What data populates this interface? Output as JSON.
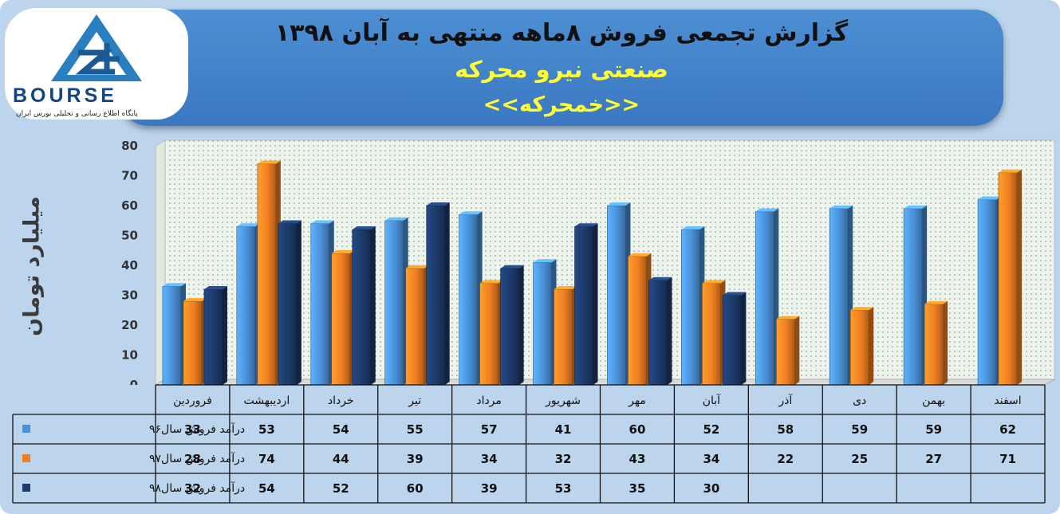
{
  "header": {
    "title": "گزارش تجمعی فروش  ۸ماهه منتهی به آبان ۱۳۹۸",
    "industry": "صنعتی نیرو محرکه",
    "symbol": "<<خمحرکه>>"
  },
  "logo": {
    "wordmark": "BOURSE",
    "tagline": "پایگاه اطلاع رسانی و تحلیلی بورس ایران"
  },
  "colors": {
    "series96": "#4a90d9",
    "series97": "#f07f22",
    "series98": "#1d3a6b",
    "plot_bg": "#eef3ee"
  },
  "chart_data": {
    "type": "bar",
    "ylabel": "میلیارد تومان",
    "xlabel": "",
    "ylim": [
      0,
      80
    ],
    "yticks": [
      0,
      10,
      20,
      30,
      40,
      50,
      60,
      70,
      80
    ],
    "grid": false,
    "legend": "table-left",
    "categories": [
      "فروردین",
      "اردیبهشت",
      "خرداد",
      "تیر",
      "مرداد",
      "شهریور",
      "مهر",
      "آبان",
      "آذر",
      "دی",
      "بهمن",
      "اسفند"
    ],
    "series": [
      {
        "name": "درآمد فروش سال۹۶",
        "values": [
          33,
          53,
          54,
          55,
          57,
          41,
          60,
          52,
          58,
          59,
          59,
          62
        ]
      },
      {
        "name": "درآمد فروش سال۹۷",
        "values": [
          28,
          74,
          44,
          39,
          34,
          32,
          43,
          34,
          22,
          25,
          27,
          71
        ]
      },
      {
        "name": "درآمد فروش سال۹۸",
        "values": [
          32,
          54,
          52,
          60,
          39,
          53,
          35,
          30,
          null,
          null,
          null,
          null
        ]
      }
    ]
  }
}
